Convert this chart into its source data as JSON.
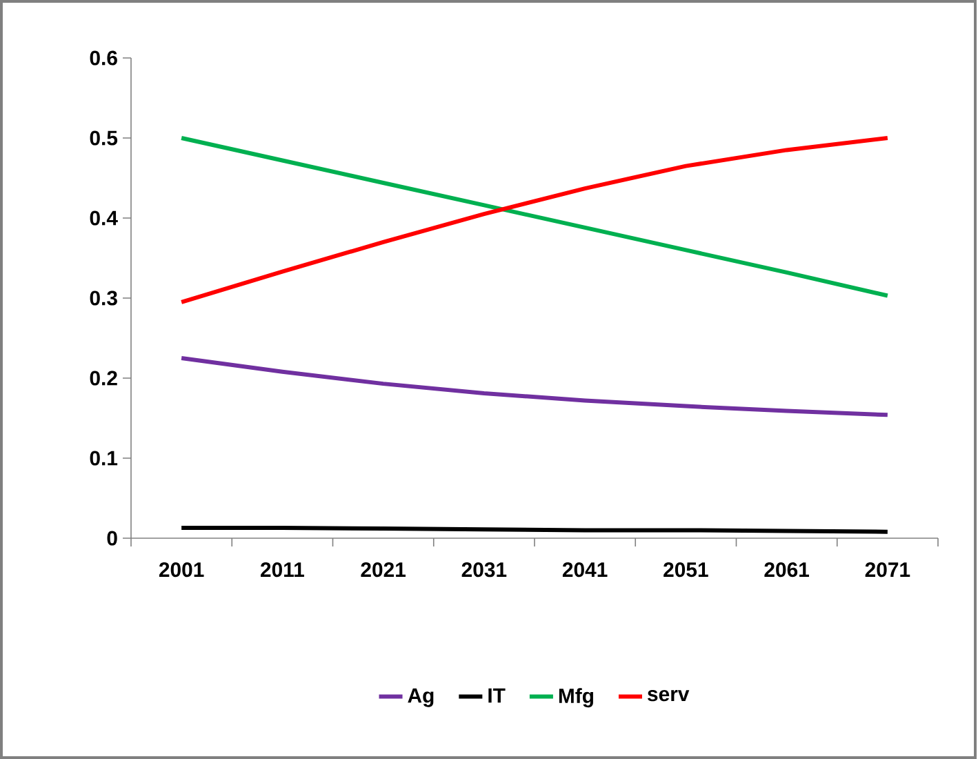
{
  "chart_data": {
    "type": "line",
    "categories": [
      "2001",
      "2011",
      "2021",
      "2031",
      "2041",
      "2051",
      "2061",
      "2071"
    ],
    "series": [
      {
        "name": "Ag",
        "color": "#7030a0",
        "values": [
          0.225,
          0.208,
          0.193,
          0.181,
          0.172,
          0.165,
          0.159,
          0.154
        ]
      },
      {
        "name": "IT",
        "color": "#000000",
        "values": [
          0.013,
          0.013,
          0.012,
          0.011,
          0.01,
          0.01,
          0.009,
          0.008
        ]
      },
      {
        "name": "Mfg",
        "color": "#00b050",
        "values": [
          0.5,
          0.472,
          0.444,
          0.416,
          0.388,
          0.36,
          0.332,
          0.303
        ]
      },
      {
        "name": "serv",
        "color": "#ff0000",
        "values": [
          0.295,
          0.333,
          0.37,
          0.405,
          0.437,
          0.465,
          0.485,
          0.5
        ]
      }
    ],
    "ylim": [
      0,
      0.6
    ],
    "yticks": [
      0,
      0.1,
      0.2,
      0.3,
      0.4,
      0.5,
      0.6
    ],
    "grid": false,
    "legend": "bottom",
    "marker": "none",
    "line_style": "solid"
  }
}
